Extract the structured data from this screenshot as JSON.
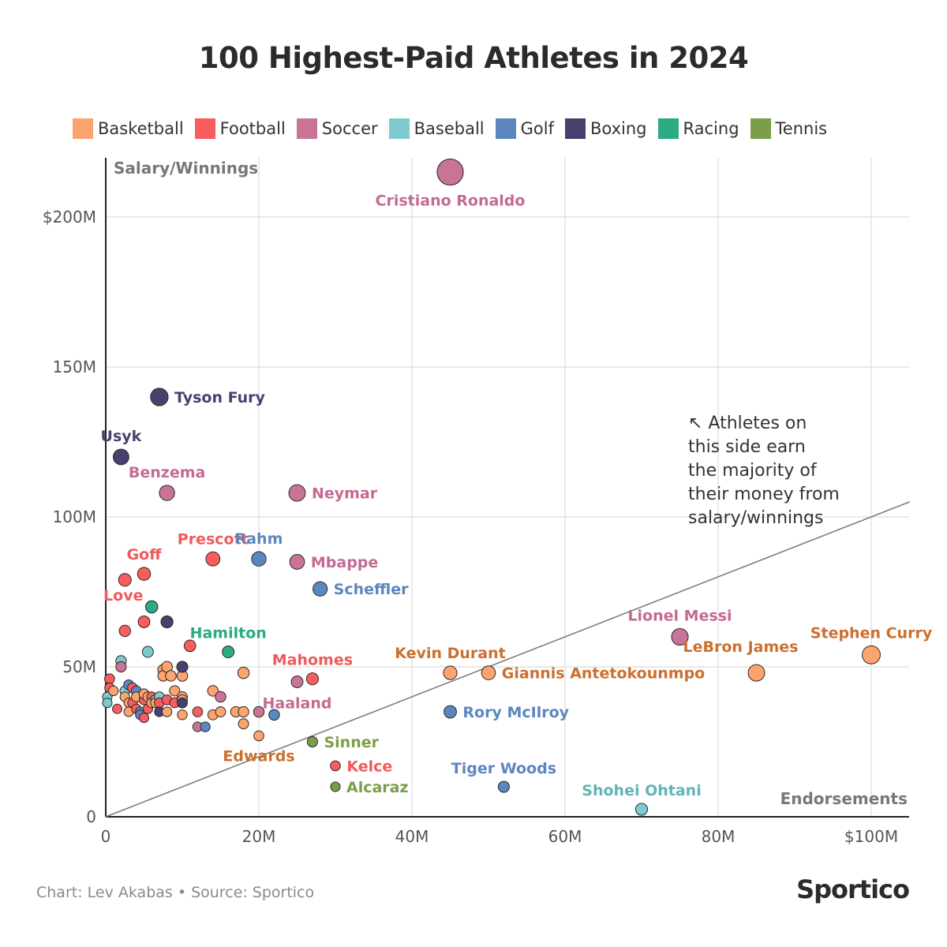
{
  "title": "100 Highest-Paid Athletes in 2024",
  "footer": {
    "credit": "Chart: Lev Akabas • Source: Sportico",
    "brand": "Sportico"
  },
  "colors": {
    "Basketball": "#FDA46E",
    "Football": "#F95C5C",
    "Soccer": "#C77497",
    "Baseball": "#7FCACD",
    "Golf": "#5B87BE",
    "Boxing": "#48406F",
    "Racing": "#2BAA84",
    "Tennis": "#7B9E4A"
  },
  "label_colors": {
    "Basketball": "#CC6F2F",
    "Football": "#F05A5A",
    "Soccer": "#C46A93",
    "Baseball": "#63B3B7",
    "Golf": "#5B87BE",
    "Boxing": "#48406F",
    "Racing": "#2BAA84",
    "Tennis": "#7B9E4A"
  },
  "legend": [
    {
      "label": "Basketball"
    },
    {
      "label": "Football"
    },
    {
      "label": "Soccer"
    },
    {
      "label": "Baseball"
    },
    {
      "label": "Golf"
    },
    {
      "label": "Boxing"
    },
    {
      "label": "Racing"
    },
    {
      "label": "Tennis"
    }
  ],
  "chart_data": {
    "type": "scatter",
    "title": "100 Highest-Paid Athletes in 2024",
    "xlabel": "Endorsements",
    "ylabel": "Salary/Winnings",
    "xlim": [
      0,
      105
    ],
    "ylim": [
      0,
      215
    ],
    "unit": "millions USD",
    "x_ticks": [
      {
        "v": 0,
        "label": "0"
      },
      {
        "v": 20,
        "label": "20M"
      },
      {
        "v": 40,
        "label": "40M"
      },
      {
        "v": 60,
        "label": "60M"
      },
      {
        "v": 80,
        "label": "80M"
      },
      {
        "v": 100,
        "label": "$100M"
      }
    ],
    "y_ticks": [
      {
        "v": 0,
        "label": "0"
      },
      {
        "v": 50,
        "label": "50M"
      },
      {
        "v": 100,
        "label": "100M"
      },
      {
        "v": 150,
        "label": "150M"
      },
      {
        "v": 200,
        "label": "$200M"
      }
    ],
    "reference_line": "y = x",
    "annotation": "↖ Athletes on this side earn the majority of their money from salary/winnings",
    "annotation_lines": [
      "↖ Athletes on",
      "this side earn",
      "the majority of",
      "their money from",
      "salary/winnings"
    ],
    "named_points": [
      {
        "name": "Cristiano Ronaldo",
        "sport": "Soccer",
        "x": 45,
        "y": 215,
        "label_pos": "below"
      },
      {
        "name": "Tyson Fury",
        "sport": "Boxing",
        "x": 7,
        "y": 140,
        "label_pos": "right"
      },
      {
        "name": "Usyk",
        "sport": "Boxing",
        "x": 2,
        "y": 120,
        "label_pos": "above"
      },
      {
        "name": "Benzema",
        "sport": "Soccer",
        "x": 8,
        "y": 108,
        "label_pos": "above"
      },
      {
        "name": "Neymar",
        "sport": "Soccer",
        "x": 25,
        "y": 108,
        "label_pos": "right"
      },
      {
        "name": "Prescott",
        "sport": "Football",
        "x": 14,
        "y": 86,
        "label_pos": "above"
      },
      {
        "name": "Rahm",
        "sport": "Golf",
        "x": 20,
        "y": 86,
        "label_pos": "above"
      },
      {
        "name": "Mbappe",
        "sport": "Soccer",
        "x": 25,
        "y": 85,
        "label_pos": "right"
      },
      {
        "name": "Goff",
        "sport": "Football",
        "x": 5,
        "y": 81,
        "label_pos": "above"
      },
      {
        "name": "Love",
        "sport": "Football",
        "x": 2.5,
        "y": 79,
        "label_pos": "below-left"
      },
      {
        "name": "Scheffler",
        "sport": "Golf",
        "x": 28,
        "y": 76,
        "label_pos": "right"
      },
      {
        "name": "Hamilton",
        "sport": "Racing",
        "x": 16,
        "y": 55,
        "label_pos": "above"
      },
      {
        "name": "Mahomes",
        "sport": "Football",
        "x": 27,
        "y": 46,
        "label_pos": "above"
      },
      {
        "name": "Haaland",
        "sport": "Soccer",
        "x": 25,
        "y": 45,
        "label_pos": "below"
      },
      {
        "name": "Edwards",
        "sport": "Basketball",
        "x": 20,
        "y": 27,
        "label_pos": "below"
      },
      {
        "name": "Sinner",
        "sport": "Tennis",
        "x": 27,
        "y": 25,
        "label_pos": "right"
      },
      {
        "name": "Kelce",
        "sport": "Football",
        "x": 30,
        "y": 17,
        "label_pos": "right"
      },
      {
        "name": "Alcaraz",
        "sport": "Tennis",
        "x": 30,
        "y": 10,
        "label_pos": "right"
      },
      {
        "name": "Kevin Durant",
        "sport": "Basketball",
        "x": 45,
        "y": 48,
        "label_pos": "above"
      },
      {
        "name": "Giannis Antetokounmpo",
        "sport": "Basketball",
        "x": 50,
        "y": 48,
        "label_pos": "right"
      },
      {
        "name": "Rory McIlroy",
        "sport": "Golf",
        "x": 45,
        "y": 35,
        "label_pos": "right"
      },
      {
        "name": "Tiger Woods",
        "sport": "Golf",
        "x": 52,
        "y": 10,
        "label_pos": "above"
      },
      {
        "name": "Shohei Ohtani",
        "sport": "Baseball",
        "x": 70,
        "y": 2.5,
        "label_pos": "above"
      },
      {
        "name": "Lionel Messi",
        "sport": "Soccer",
        "x": 75,
        "y": 60,
        "label_pos": "above"
      },
      {
        "name": "LeBron James",
        "sport": "Basketball",
        "x": 85,
        "y": 48,
        "label_pos": "above-left"
      },
      {
        "name": "Stephen Curry",
        "sport": "Basketball",
        "x": 100,
        "y": 54,
        "label_pos": "above"
      }
    ],
    "unnamed_points": [
      {
        "sport": "Football",
        "x": 0.5,
        "y": 46
      },
      {
        "sport": "Football",
        "x": 0.5,
        "y": 43
      },
      {
        "sport": "Baseball",
        "x": 0.2,
        "y": 40
      },
      {
        "sport": "Baseball",
        "x": 0.2,
        "y": 38
      },
      {
        "sport": "Basketball",
        "x": 1,
        "y": 42
      },
      {
        "sport": "Football",
        "x": 1.5,
        "y": 36
      },
      {
        "sport": "Baseball",
        "x": 2,
        "y": 52
      },
      {
        "sport": "Soccer",
        "x": 2,
        "y": 50
      },
      {
        "sport": "Football",
        "x": 2.5,
        "y": 62
      },
      {
        "sport": "Baseball",
        "x": 2.5,
        "y": 42
      },
      {
        "sport": "Basketball",
        "x": 2.5,
        "y": 40
      },
      {
        "sport": "Basketball",
        "x": 3,
        "y": 38
      },
      {
        "sport": "Golf",
        "x": 3,
        "y": 44
      },
      {
        "sport": "Basketball",
        "x": 3,
        "y": 35
      },
      {
        "sport": "Football",
        "x": 3.5,
        "y": 43
      },
      {
        "sport": "Football",
        "x": 3.5,
        "y": 38
      },
      {
        "sport": "Golf",
        "x": 4,
        "y": 42
      },
      {
        "sport": "Football",
        "x": 4,
        "y": 36
      },
      {
        "sport": "Basketball",
        "x": 4,
        "y": 40
      },
      {
        "sport": "Golf",
        "x": 4.5,
        "y": 35
      },
      {
        "sport": "Golf",
        "x": 4.5,
        "y": 34
      },
      {
        "sport": "Football",
        "x": 5,
        "y": 33
      },
      {
        "sport": "Football",
        "x": 5,
        "y": 39
      },
      {
        "sport": "Basketball",
        "x": 5,
        "y": 41
      },
      {
        "sport": "Football",
        "x": 5,
        "y": 65
      },
      {
        "sport": "Baseball",
        "x": 5.5,
        "y": 55
      },
      {
        "sport": "Football",
        "x": 5.5,
        "y": 36
      },
      {
        "sport": "Basketball",
        "x": 5.5,
        "y": 40
      },
      {
        "sport": "Football",
        "x": 6,
        "y": 40
      },
      {
        "sport": "Racing",
        "x": 6,
        "y": 70
      },
      {
        "sport": "Basketball",
        "x": 6,
        "y": 38
      },
      {
        "sport": "Baseball",
        "x": 6.5,
        "y": 39
      },
      {
        "sport": "Basketball",
        "x": 6.5,
        "y": 38
      },
      {
        "sport": "Baseball",
        "x": 7,
        "y": 40
      },
      {
        "sport": "Football",
        "x": 7,
        "y": 38
      },
      {
        "sport": "Boxing",
        "x": 7,
        "y": 35
      },
      {
        "sport": "Basketball",
        "x": 7.5,
        "y": 49
      },
      {
        "sport": "Basketball",
        "x": 7.5,
        "y": 47
      },
      {
        "sport": "Basketball",
        "x": 8,
        "y": 50
      },
      {
        "sport": "Boxing",
        "x": 8,
        "y": 65
      },
      {
        "sport": "Football",
        "x": 8,
        "y": 39
      },
      {
        "sport": "Basketball",
        "x": 8,
        "y": 35
      },
      {
        "sport": "Basketball",
        "x": 8.5,
        "y": 47
      },
      {
        "sport": "Basketball",
        "x": 9,
        "y": 42
      },
      {
        "sport": "Football",
        "x": 9,
        "y": 38
      },
      {
        "sport": "Basketball",
        "x": 10,
        "y": 50
      },
      {
        "sport": "Basketball",
        "x": 10,
        "y": 47
      },
      {
        "sport": "Basketball",
        "x": 10,
        "y": 40
      },
      {
        "sport": "Basketball",
        "x": 10,
        "y": 39
      },
      {
        "sport": "Boxing",
        "x": 10,
        "y": 38
      },
      {
        "sport": "Basketball",
        "x": 10,
        "y": 34
      },
      {
        "sport": "Boxing",
        "x": 10,
        "y": 50
      },
      {
        "sport": "Football",
        "x": 11,
        "y": 57
      },
      {
        "sport": "Football",
        "x": 12,
        "y": 35
      },
      {
        "sport": "Soccer",
        "x": 12,
        "y": 30
      },
      {
        "sport": "Golf",
        "x": 13,
        "y": 30
      },
      {
        "sport": "Basketball",
        "x": 14,
        "y": 42
      },
      {
        "sport": "Basketball",
        "x": 14,
        "y": 34
      },
      {
        "sport": "Soccer",
        "x": 15,
        "y": 40
      },
      {
        "sport": "Basketball",
        "x": 15,
        "y": 35
      },
      {
        "sport": "Basketball",
        "x": 17,
        "y": 35
      },
      {
        "sport": "Basketball",
        "x": 18,
        "y": 48
      },
      {
        "sport": "Basketball",
        "x": 18,
        "y": 35
      },
      {
        "sport": "Basketball",
        "x": 18,
        "y": 31
      },
      {
        "sport": "Soccer",
        "x": 20,
        "y": 35
      },
      {
        "sport": "Golf",
        "x": 22,
        "y": 34
      }
    ]
  }
}
